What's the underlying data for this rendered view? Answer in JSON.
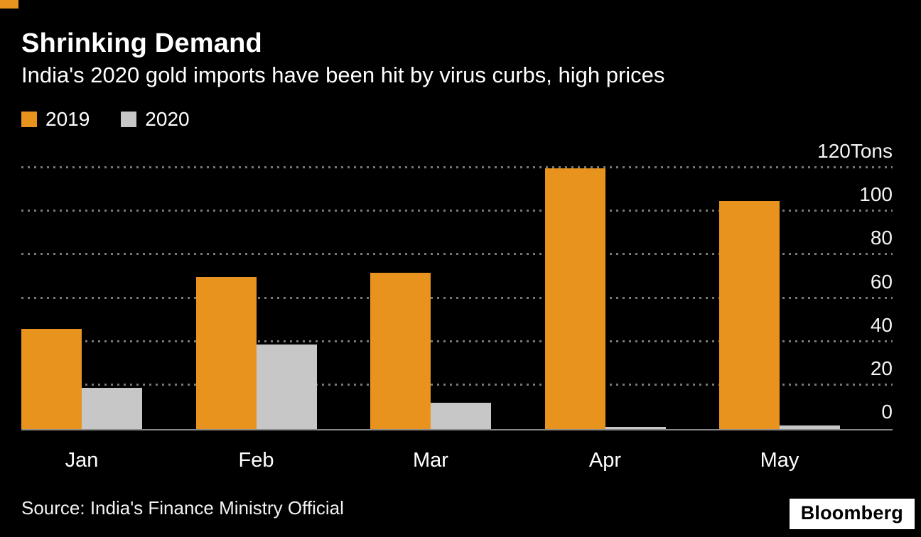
{
  "branding": {
    "logo_text": "Bloomberg",
    "accent_color": "#E8931D"
  },
  "header": {
    "title": "Shrinking Demand",
    "subtitle": "India's 2020 gold imports have been hit by virus curbs, high prices"
  },
  "legend": [
    {
      "label": "2019",
      "color": "#E8931D"
    },
    {
      "label": "2020",
      "color": "#C7C7C7"
    }
  ],
  "source": "Source: India's Finance Ministry Official",
  "chart_data": {
    "type": "bar",
    "title": "Shrinking Demand",
    "subtitle": "India's 2020 gold imports have been hit by virus curbs, high prices",
    "categories": [
      "Jan",
      "Feb",
      "Mar",
      "Apr",
      "May"
    ],
    "series": [
      {
        "name": "2019",
        "color": "#E8931D",
        "values": [
          46,
          70,
          72,
          120,
          105
        ]
      },
      {
        "name": "2020",
        "color": "#C7C7C7",
        "values": [
          19,
          39,
          12,
          1,
          1.5
        ]
      }
    ],
    "unit": "Tons",
    "ylabel": "Tons",
    "ylim": [
      0,
      120
    ],
    "yticks": [
      0,
      20,
      40,
      60,
      80,
      100,
      120
    ],
    "ytick_labels": [
      "0",
      "20",
      "40",
      "60",
      "80",
      "100",
      "120Tons"
    ],
    "grid": "horizontal-dotted",
    "legend_position": "top-left",
    "y_axis_position": "right",
    "background": "#000000"
  }
}
